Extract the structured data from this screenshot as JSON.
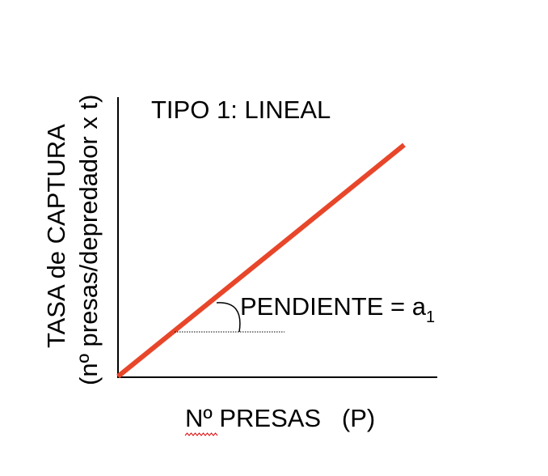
{
  "diagram": {
    "title": "TIPO 1: LINEAL",
    "y_axis_label_line1": "TASA de CAPTURA",
    "y_axis_label_line2": "(nº presas/depredador x t)",
    "x_axis_label": "Nº PRESAS   (P)",
    "slope_label": "PENDIENTE = a",
    "slope_subscript": "1",
    "colors": {
      "line": "#e8462a",
      "axes": "#000000",
      "text": "#000000",
      "spellcheck_underline": "#e00000"
    }
  }
}
